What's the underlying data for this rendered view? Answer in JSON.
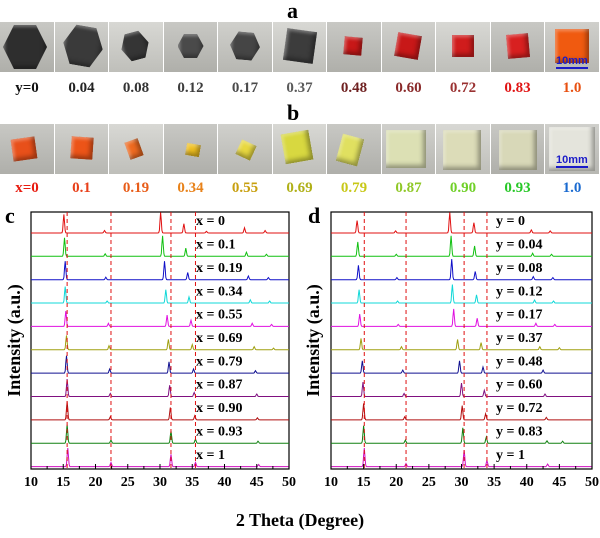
{
  "panels": {
    "a": "a",
    "b": "b",
    "c": "c",
    "d": "d"
  },
  "scale_bar": "10mm",
  "strip_a": {
    "labels": [
      "y=0",
      "0.04",
      "0.08",
      "0.12",
      "0.17",
      "0.37",
      "0.48",
      "0.60",
      "0.72",
      "0.83",
      "1.0"
    ],
    "label_colors": [
      "#111111",
      "#222222",
      "#333333",
      "#3d3d3d",
      "#4a4a4a",
      "#5a5a5a",
      "#6e2020",
      "#8a2a2a",
      "#9a3232",
      "#e01414",
      "#e85010"
    ],
    "crystal_colors": [
      "#2e2e2e",
      "#3a3a3a",
      "#353535",
      "#4a4a4a",
      "#454545",
      "#3c3c3c",
      "#c81818",
      "#c81818",
      "#d01c1c",
      "#d82020",
      "#f05a10"
    ]
  },
  "strip_b": {
    "labels": [
      "x=0",
      "0.1",
      "0.19",
      "0.34",
      "0.55",
      "0.69",
      "0.79",
      "0.87",
      "0.90",
      "0.93",
      "1.0"
    ],
    "label_colors": [
      "#e81c10",
      "#e8401a",
      "#e85c18",
      "#e8821a",
      "#c8a010",
      "#b0b018",
      "#c8c818",
      "#90c828",
      "#70d028",
      "#28c828",
      "#1a6ad0"
    ],
    "crystal_colors": [
      "#e8501a",
      "#ec5418",
      "#ee6a20",
      "#f0c020",
      "#e8d840",
      "#d8d840",
      "#e0e060",
      "#dce0b4",
      "#dcdcb8",
      "#d8d8b8",
      "#e4e4dc"
    ]
  },
  "chart_data": [
    {
      "type": "line",
      "panel": "c",
      "xlabel": "2 Theta (Degree)",
      "ylabel": "Intensity (a.u.)",
      "xlim": [
        10,
        50
      ],
      "xticks": [
        10,
        15,
        20,
        25,
        30,
        35,
        40,
        45,
        50
      ],
      "reference_lines": [
        15.6,
        22.4,
        31.7,
        35.5
      ],
      "series": [
        {
          "name": "x = 0",
          "color": "#e01010",
          "peaks": [
            [
              15.1,
              0.9
            ],
            [
              21.4,
              0.12
            ],
            [
              30.1,
              1.0
            ],
            [
              33.7,
              0.45
            ],
            [
              37.2,
              0.08
            ],
            [
              43.1,
              0.25
            ],
            [
              46.3,
              0.12
            ]
          ]
        },
        {
          "name": "x = 0.1",
          "color": "#10c010",
          "peaks": [
            [
              15.2,
              0.9
            ],
            [
              21.5,
              0.12
            ],
            [
              30.4,
              1.0
            ],
            [
              34.0,
              0.4
            ],
            [
              43.4,
              0.2
            ],
            [
              46.5,
              0.1
            ]
          ]
        },
        {
          "name": "x = 0.19",
          "color": "#1010c8",
          "peaks": [
            [
              15.3,
              0.9
            ],
            [
              21.6,
              0.12
            ],
            [
              30.7,
              0.9
            ],
            [
              34.3,
              0.35
            ],
            [
              43.7,
              0.18
            ],
            [
              46.8,
              0.1
            ]
          ]
        },
        {
          "name": "x = 0.34",
          "color": "#10d8d8",
          "peaks": [
            [
              15.3,
              0.8
            ],
            [
              21.8,
              0.1
            ],
            [
              30.9,
              0.65
            ],
            [
              34.5,
              0.3
            ],
            [
              44.0,
              0.16
            ],
            [
              47.0,
              0.1
            ]
          ]
        },
        {
          "name": "x = 0.55",
          "color": "#e010e0",
          "peaks": [
            [
              15.4,
              0.75
            ],
            [
              22.0,
              0.15
            ],
            [
              31.1,
              0.55
            ],
            [
              34.8,
              0.3
            ],
            [
              44.3,
              0.15
            ],
            [
              47.3,
              0.1
            ]
          ]
        },
        {
          "name": "x = 0.69",
          "color": "#a0a010",
          "peaks": [
            [
              15.5,
              0.7
            ],
            [
              22.1,
              0.2
            ],
            [
              31.3,
              0.5
            ],
            [
              35.0,
              0.25
            ],
            [
              44.6,
              0.15
            ],
            [
              47.6,
              0.08
            ]
          ]
        },
        {
          "name": "x = 0.79",
          "color": "#101090",
          "peaks": [
            [
              15.5,
              0.85
            ],
            [
              22.2,
              0.2
            ],
            [
              31.4,
              0.55
            ],
            [
              35.2,
              0.2
            ],
            [
              44.8,
              0.12
            ]
          ]
        },
        {
          "name": "x = 0.87",
          "color": "#801080",
          "peaks": [
            [
              15.6,
              0.85
            ],
            [
              22.3,
              0.15
            ],
            [
              31.5,
              0.55
            ],
            [
              35.3,
              0.2
            ],
            [
              45.0,
              0.12
            ]
          ]
        },
        {
          "name": "x = 0.90",
          "color": "#b01010",
          "peaks": [
            [
              15.6,
              0.9
            ],
            [
              22.3,
              0.15
            ],
            [
              31.6,
              0.6
            ],
            [
              35.4,
              0.2
            ],
            [
              45.1,
              0.1
            ]
          ]
        },
        {
          "name": "x = 0.93",
          "color": "#108010",
          "peaks": [
            [
              15.6,
              0.9
            ],
            [
              22.4,
              0.15
            ],
            [
              31.7,
              0.6
            ],
            [
              35.5,
              0.2
            ],
            [
              45.2,
              0.1
            ]
          ]
        },
        {
          "name": "x = 1",
          "color": "#d010c0",
          "peaks": [
            [
              15.7,
              0.9
            ],
            [
              22.4,
              0.2
            ],
            [
              31.7,
              0.6
            ],
            [
              35.5,
              0.2
            ],
            [
              45.3,
              0.1
            ]
          ]
        }
      ]
    },
    {
      "type": "line",
      "panel": "d",
      "xlabel": "2 Theta (Degree)",
      "ylabel": "Intensity (a.u.)",
      "xlim": [
        10,
        50
      ],
      "xticks": [
        10,
        15,
        20,
        25,
        30,
        35,
        40,
        45,
        50
      ],
      "reference_lines": [
        15.1,
        21.5,
        30.4,
        33.9
      ],
      "series": [
        {
          "name": "y = 0",
          "color": "#e01010",
          "peaks": [
            [
              14.0,
              0.6
            ],
            [
              19.9,
              0.1
            ],
            [
              28.2,
              1.0
            ],
            [
              31.9,
              0.5
            ],
            [
              40.7,
              0.15
            ],
            [
              43.6,
              0.1
            ]
          ]
        },
        {
          "name": "y = 0.04",
          "color": "#10c010",
          "peaks": [
            [
              14.1,
              0.7
            ],
            [
              20.0,
              0.1
            ],
            [
              28.4,
              1.0
            ],
            [
              32.0,
              0.5
            ],
            [
              40.9,
              0.15
            ],
            [
              43.8,
              0.1
            ]
          ]
        },
        {
          "name": "y = 0.08",
          "color": "#1010c8",
          "peaks": [
            [
              14.2,
              0.7
            ],
            [
              20.1,
              0.1
            ],
            [
              28.5,
              1.0
            ],
            [
              32.1,
              0.4
            ],
            [
              41.0,
              0.15
            ],
            [
              44.0,
              0.1
            ]
          ]
        },
        {
          "name": "y = 0.12",
          "color": "#10d8d8",
          "peaks": [
            [
              14.3,
              0.65
            ],
            [
              20.2,
              0.1
            ],
            [
              28.6,
              0.9
            ],
            [
              32.3,
              0.4
            ],
            [
              41.2,
              0.15
            ],
            [
              44.1,
              0.1
            ]
          ]
        },
        {
          "name": "y = 0.17",
          "color": "#e010e0",
          "peaks": [
            [
              14.4,
              0.6
            ],
            [
              20.3,
              0.1
            ],
            [
              28.8,
              0.85
            ],
            [
              32.4,
              0.4
            ],
            [
              41.4,
              0.15
            ],
            [
              44.3,
              0.1
            ]
          ]
        },
        {
          "name": "y = 0.37",
          "color": "#a0a010",
          "peaks": [
            [
              14.6,
              0.55
            ],
            [
              20.8,
              0.15
            ],
            [
              29.4,
              0.5
            ],
            [
              33.0,
              0.35
            ],
            [
              42.0,
              0.15
            ],
            [
              45.0,
              0.1
            ]
          ]
        },
        {
          "name": "y = 0.48",
          "color": "#101090",
          "peaks": [
            [
              14.8,
              0.6
            ],
            [
              21.0,
              0.15
            ],
            [
              29.7,
              0.6
            ],
            [
              33.3,
              0.3
            ],
            [
              42.5,
              0.15
            ]
          ]
        },
        {
          "name": "y = 0.60",
          "color": "#801080",
          "peaks": [
            [
              14.9,
              0.7
            ],
            [
              21.2,
              0.15
            ],
            [
              30.0,
              0.65
            ],
            [
              33.5,
              0.3
            ],
            [
              42.8,
              0.12
            ]
          ]
        },
        {
          "name": "y = 0.72",
          "color": "#b01010",
          "peaks": [
            [
              15.0,
              0.8
            ],
            [
              21.3,
              0.15
            ],
            [
              30.1,
              0.7
            ],
            [
              33.7,
              0.3
            ],
            [
              43.0,
              0.12
            ]
          ]
        },
        {
          "name": "y = 0.83",
          "color": "#108010",
          "peaks": [
            [
              15.0,
              0.85
            ],
            [
              21.4,
              0.15
            ],
            [
              30.2,
              0.75
            ],
            [
              33.8,
              0.3
            ],
            [
              43.1,
              0.12
            ],
            [
              45.5,
              0.1
            ]
          ]
        },
        {
          "name": "y = 1",
          "color": "#d010c0",
          "peaks": [
            [
              15.1,
              0.9
            ],
            [
              21.5,
              0.15
            ],
            [
              30.4,
              0.8
            ],
            [
              33.9,
              0.3
            ],
            [
              43.2,
              0.12
            ]
          ]
        }
      ]
    }
  ]
}
